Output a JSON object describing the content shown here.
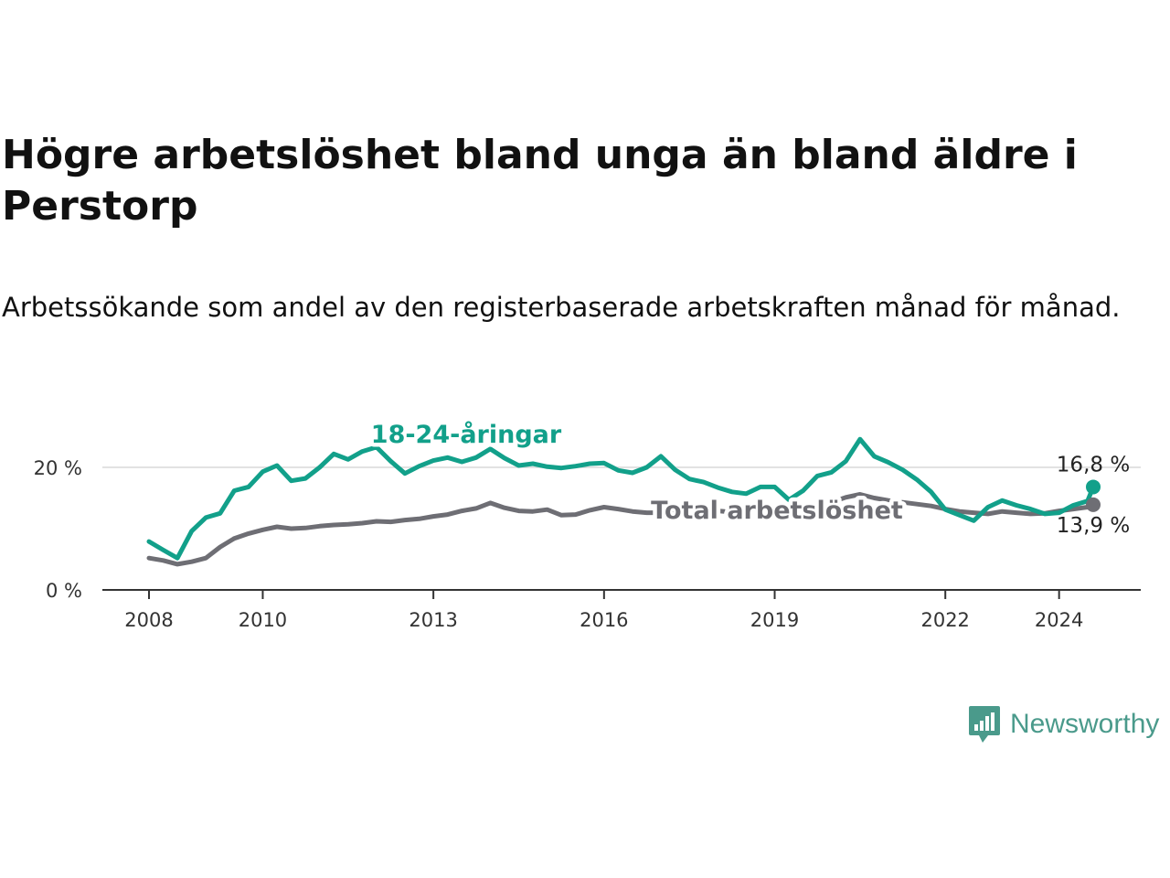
{
  "title": "Högre arbetslöshet bland unga än bland äldre i Perstorp",
  "subtitle": "Arbetssökande som andel av den registerbaserade arbetskraften månad för månad.",
  "brand": {
    "name": "Newsworthy",
    "icon": "newsworthy-logo-icon",
    "color": "#4a9a8b"
  },
  "chart_data": {
    "type": "line",
    "title": "Högre arbetslöshet bland unga än bland äldre i Perstorp",
    "xlabel": "",
    "ylabel": "",
    "xlim": [
      2008,
      2025
    ],
    "ylim": [
      0,
      25
    ],
    "x_ticks": [
      {
        "value": 2008,
        "label": "2008"
      },
      {
        "value": 2010,
        "label": "2010"
      },
      {
        "value": 2013,
        "label": "2013"
      },
      {
        "value": 2016,
        "label": "2016"
      },
      {
        "value": 2019,
        "label": "2019"
      },
      {
        "value": 2022,
        "label": "2022"
      },
      {
        "value": 2024,
        "label": "2024"
      }
    ],
    "y_ticks": [
      {
        "value": 0,
        "label": "0 %"
      },
      {
        "value": 20,
        "label": "20 %"
      }
    ],
    "grid": true,
    "series": [
      {
        "name": "18-24-åringar",
        "label": "18-24-åringar",
        "color": "#12a08a",
        "end_label": "16,8 %",
        "points": [
          [
            2008.0,
            7.9
          ],
          [
            2008.25,
            6.5
          ],
          [
            2008.5,
            5.2
          ],
          [
            2008.75,
            9.6
          ],
          [
            2009.0,
            11.8
          ],
          [
            2009.25,
            12.5
          ],
          [
            2009.5,
            16.2
          ],
          [
            2009.75,
            16.8
          ],
          [
            2010.0,
            19.3
          ],
          [
            2010.25,
            20.3
          ],
          [
            2010.5,
            17.8
          ],
          [
            2010.75,
            18.2
          ],
          [
            2011.0,
            20.0
          ],
          [
            2011.25,
            22.2
          ],
          [
            2011.5,
            21.3
          ],
          [
            2011.75,
            22.6
          ],
          [
            2012.0,
            23.3
          ],
          [
            2012.25,
            21.0
          ],
          [
            2012.5,
            19.0
          ],
          [
            2012.75,
            20.2
          ],
          [
            2013.0,
            21.1
          ],
          [
            2013.25,
            21.6
          ],
          [
            2013.5,
            20.9
          ],
          [
            2013.75,
            21.6
          ],
          [
            2014.0,
            23.0
          ],
          [
            2014.25,
            21.5
          ],
          [
            2014.5,
            20.3
          ],
          [
            2014.75,
            20.6
          ],
          [
            2015.0,
            20.1
          ],
          [
            2015.25,
            19.9
          ],
          [
            2015.5,
            20.2
          ],
          [
            2015.75,
            20.6
          ],
          [
            2016.0,
            20.7
          ],
          [
            2016.25,
            19.5
          ],
          [
            2016.5,
            19.1
          ],
          [
            2016.75,
            20.0
          ],
          [
            2017.0,
            21.8
          ],
          [
            2017.25,
            19.6
          ],
          [
            2017.5,
            18.1
          ],
          [
            2017.75,
            17.6
          ],
          [
            2018.0,
            16.7
          ],
          [
            2018.25,
            16.0
          ],
          [
            2018.5,
            15.7
          ],
          [
            2018.75,
            16.8
          ],
          [
            2019.0,
            16.8
          ],
          [
            2019.25,
            14.7
          ],
          [
            2019.5,
            16.2
          ],
          [
            2019.75,
            18.6
          ],
          [
            2020.0,
            19.2
          ],
          [
            2020.25,
            21.0
          ],
          [
            2020.5,
            24.6
          ],
          [
            2020.75,
            21.8
          ],
          [
            2021.0,
            20.8
          ],
          [
            2021.25,
            19.6
          ],
          [
            2021.5,
            18.0
          ],
          [
            2021.75,
            16.0
          ],
          [
            2022.0,
            13.1
          ],
          [
            2022.25,
            12.2
          ],
          [
            2022.5,
            11.3
          ],
          [
            2022.75,
            13.5
          ],
          [
            2023.0,
            14.6
          ],
          [
            2023.25,
            13.8
          ],
          [
            2023.5,
            13.2
          ],
          [
            2023.75,
            12.4
          ],
          [
            2024.0,
            12.6
          ],
          [
            2024.25,
            13.8
          ],
          [
            2024.5,
            14.5
          ],
          [
            2024.6,
            16.8
          ]
        ]
      },
      {
        "name": "Total arbetslöshet",
        "label": "Total arbetslöshet",
        "color": "#6e6e74",
        "end_label": "13,9 %",
        "points": [
          [
            2008.0,
            5.2
          ],
          [
            2008.25,
            4.8
          ],
          [
            2008.5,
            4.2
          ],
          [
            2008.75,
            4.6
          ],
          [
            2009.0,
            5.2
          ],
          [
            2009.25,
            7.0
          ],
          [
            2009.5,
            8.4
          ],
          [
            2009.75,
            9.2
          ],
          [
            2010.0,
            9.8
          ],
          [
            2010.25,
            10.3
          ],
          [
            2010.5,
            10.0
          ],
          [
            2010.75,
            10.1
          ],
          [
            2011.0,
            10.4
          ],
          [
            2011.25,
            10.6
          ],
          [
            2011.5,
            10.7
          ],
          [
            2011.75,
            10.9
          ],
          [
            2012.0,
            11.2
          ],
          [
            2012.25,
            11.1
          ],
          [
            2012.5,
            11.4
          ],
          [
            2012.75,
            11.6
          ],
          [
            2013.0,
            12.0
          ],
          [
            2013.25,
            12.3
          ],
          [
            2013.5,
            12.9
          ],
          [
            2013.75,
            13.3
          ],
          [
            2014.0,
            14.2
          ],
          [
            2014.25,
            13.4
          ],
          [
            2014.5,
            12.9
          ],
          [
            2014.75,
            12.8
          ],
          [
            2015.0,
            13.1
          ],
          [
            2015.25,
            12.2
          ],
          [
            2015.5,
            12.3
          ],
          [
            2015.75,
            13.0
          ],
          [
            2016.0,
            13.5
          ],
          [
            2016.25,
            13.2
          ],
          [
            2016.5,
            12.8
          ],
          [
            2016.75,
            12.6
          ],
          [
            2017.0,
            12.6
          ],
          [
            2017.25,
            12.4
          ],
          [
            2017.5,
            12.6
          ],
          [
            2017.75,
            12.8
          ],
          [
            2018.0,
            12.9
          ],
          [
            2018.25,
            12.7
          ],
          [
            2018.5,
            12.9
          ],
          [
            2018.75,
            13.1
          ],
          [
            2019.0,
            13.3
          ],
          [
            2019.25,
            13.4
          ],
          [
            2019.5,
            13.6
          ],
          [
            2019.75,
            13.8
          ],
          [
            2020.0,
            14.3
          ],
          [
            2020.25,
            15.1
          ],
          [
            2020.5,
            15.6
          ],
          [
            2020.75,
            15.0
          ],
          [
            2021.0,
            14.6
          ],
          [
            2021.25,
            14.3
          ],
          [
            2021.5,
            14.0
          ],
          [
            2021.75,
            13.7
          ],
          [
            2022.0,
            13.2
          ],
          [
            2022.25,
            12.8
          ],
          [
            2022.5,
            12.6
          ],
          [
            2022.75,
            12.4
          ],
          [
            2023.0,
            12.8
          ],
          [
            2023.25,
            12.6
          ],
          [
            2023.5,
            12.4
          ],
          [
            2023.75,
            12.5
          ],
          [
            2024.0,
            12.9
          ],
          [
            2024.25,
            13.2
          ],
          [
            2024.5,
            13.5
          ],
          [
            2024.6,
            13.9
          ]
        ]
      }
    ]
  }
}
